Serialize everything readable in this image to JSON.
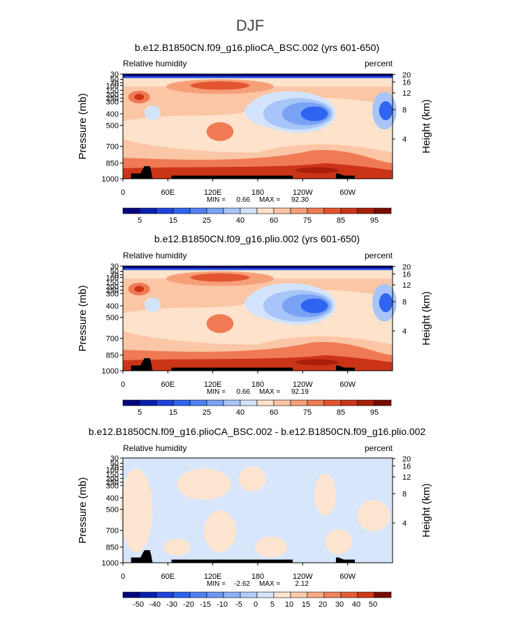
{
  "page_title": "DJF",
  "chart_data": [
    {
      "type": "heatmap",
      "title": "b.e12.B1850CN.f09_g16.plioCA_BSC.002 (yrs 601-650)",
      "left_label": "Relative humidity",
      "right_label": "percent",
      "ylabel": "Pressure (mb)",
      "y2label": "Height (km)",
      "pressure_ticks": [
        "30",
        "50",
        "70",
        "100",
        "150",
        "200",
        "250",
        "300",
        "400",
        "500",
        "700",
        "850",
        "1000"
      ],
      "height_ticks": [
        "20",
        "16",
        "12",
        "8",
        "4"
      ],
      "x_ticks": [
        "0",
        "60E",
        "120E",
        "180",
        "120W",
        "60W"
      ],
      "stats": {
        "min_label": "MIN =",
        "min": "0.66",
        "max_label": "MAX =",
        "max": "92.30"
      },
      "colorbar_labels": [
        "5",
        "15",
        "25",
        "40",
        "60",
        "75",
        "85",
        "95"
      ],
      "colorbar_colors": [
        "#03007f",
        "#0a1fb0",
        "#1d44d9",
        "#2e64f0",
        "#4f81f2",
        "#7aa3f5",
        "#a7c5f8",
        "#d3e3fb",
        "#fde2cc",
        "#fbc6a5",
        "#f6a07a",
        "#ef7a53",
        "#e3552f",
        "#cc3418",
        "#a8200a",
        "#7b0c04"
      ]
    },
    {
      "type": "heatmap",
      "title": "b.e12.B1850CN.f09_g16.plio.002 (yrs 601-650)",
      "left_label": "Relative humidity",
      "right_label": "percent",
      "ylabel": "Pressure (mb)",
      "y2label": "Height (km)",
      "pressure_ticks": [
        "30",
        "50",
        "70",
        "100",
        "150",
        "200",
        "250",
        "300",
        "400",
        "500",
        "700",
        "850",
        "1000"
      ],
      "height_ticks": [
        "20",
        "16",
        "12",
        "8",
        "4"
      ],
      "x_ticks": [
        "0",
        "60E",
        "120E",
        "180",
        "120W",
        "60W"
      ],
      "stats": {
        "min_label": "MIN =",
        "min": "0.66",
        "max_label": "MAX =",
        "max": "92.19"
      },
      "colorbar_labels": [
        "5",
        "15",
        "25",
        "40",
        "60",
        "75",
        "85",
        "95"
      ],
      "colorbar_colors": [
        "#03007f",
        "#0a1fb0",
        "#1d44d9",
        "#2e64f0",
        "#4f81f2",
        "#7aa3f5",
        "#a7c5f8",
        "#d3e3fb",
        "#fde2cc",
        "#fbc6a5",
        "#f6a07a",
        "#ef7a53",
        "#e3552f",
        "#cc3418",
        "#a8200a",
        "#7b0c04"
      ]
    },
    {
      "type": "heatmap",
      "title": "b.e12.B1850CN.f09_g16.plioCA_BSC.002 - b.e12.B1850CN.f09_g16.plio.002",
      "left_label": "Relative humidity",
      "right_label": "percent",
      "ylabel": "Pressure (mb)",
      "y2label": "Height (km)",
      "pressure_ticks": [
        "30",
        "50",
        "70",
        "100",
        "150",
        "200",
        "250",
        "300",
        "400",
        "500",
        "700",
        "850",
        "1000"
      ],
      "height_ticks": [
        "20",
        "16",
        "12",
        "8",
        "4"
      ],
      "x_ticks": [
        "0",
        "60E",
        "120E",
        "180",
        "120W",
        "60W"
      ],
      "stats": {
        "min_label": "MIN =",
        "min": "-2.62",
        "max_label": "MAX =",
        "max": "2.12"
      },
      "colorbar_labels": [
        "-50",
        "-40",
        "-30",
        "-20",
        "-15",
        "-10",
        "-5",
        "0",
        "5",
        "10",
        "15",
        "20",
        "30",
        "40",
        "50"
      ],
      "colorbar_colors": [
        "#03007f",
        "#0a1fb0",
        "#1d44d9",
        "#2e64f0",
        "#4f81f2",
        "#6d97f4",
        "#8fb2f6",
        "#b3ccf9",
        "#d7e6fb",
        "#fde5d2",
        "#fbcbab",
        "#f7ab84",
        "#f0855c",
        "#e55d35",
        "#cf391a",
        "#7b0c04"
      ]
    }
  ]
}
